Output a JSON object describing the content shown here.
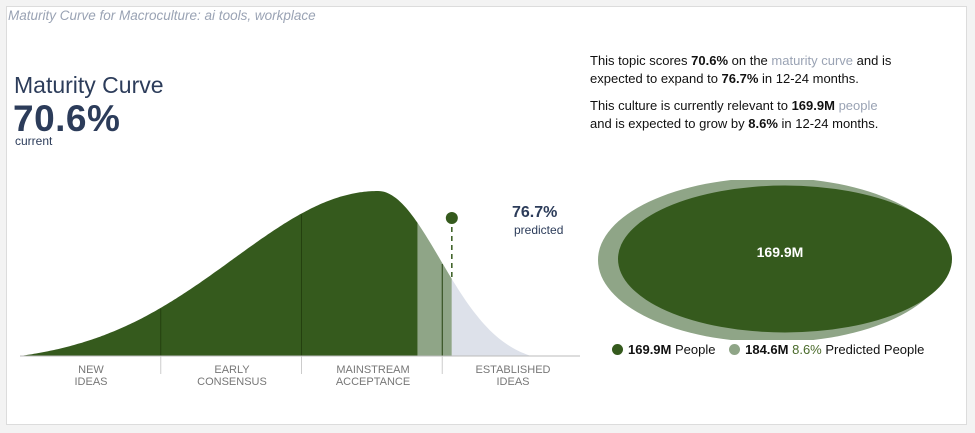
{
  "header": {
    "title": "Maturity Curve for Macroculture: ai tools, workplace"
  },
  "kpi": {
    "label": "Maturity Curve",
    "value": "70.6%",
    "sublabel": "current"
  },
  "summary": {
    "line1_pre": "This topic scores ",
    "line1_score": "70.6%",
    "line1_mid": " on the ",
    "line1_link": "maturity curve",
    "line1_post": " and is",
    "line2_pre": "expected to expand to ",
    "line2_value": "76.7%",
    "line2_post": " in 12-24 months.",
    "line3_pre": "This culture is currently relevant to ",
    "line3_value": "169.9M",
    "line3_link": " people",
    "line4_pre": "and is expected to grow by ",
    "line4_value": "8.6%",
    "line4_post": " in 12-24 months."
  },
  "chart_data": [
    {
      "type": "area",
      "stages": [
        {
          "line1": "NEW",
          "line2": "IDEAS"
        },
        {
          "line1": "EARLY",
          "line2": "CONSENSUS"
        },
        {
          "line1": "MAINSTREAM",
          "line2": "ACCEPTANCE"
        },
        {
          "line1": "ESTABLISHED",
          "line2": "IDEAS"
        }
      ],
      "active_stage": 3,
      "current_percent": 70.6,
      "predicted_percent": 76.7,
      "predicted_label": "76.7%",
      "predicted_sublabel": "predicted",
      "colors": {
        "filled": "#355a1d",
        "growth": "#8fa587",
        "remaining": "#dde1ea",
        "divider": "#24400f"
      }
    },
    {
      "type": "bubble",
      "current_value_millions": 169.9,
      "predicted_value_millions": 184.6,
      "center_label": "169.9M",
      "legend": [
        {
          "value": "169.9M",
          "label": "People",
          "color": "#355a1d"
        },
        {
          "value": "184.6M",
          "growth": "8.6%",
          "label": "Predicted People",
          "color": "#8fa587"
        }
      ]
    }
  ]
}
